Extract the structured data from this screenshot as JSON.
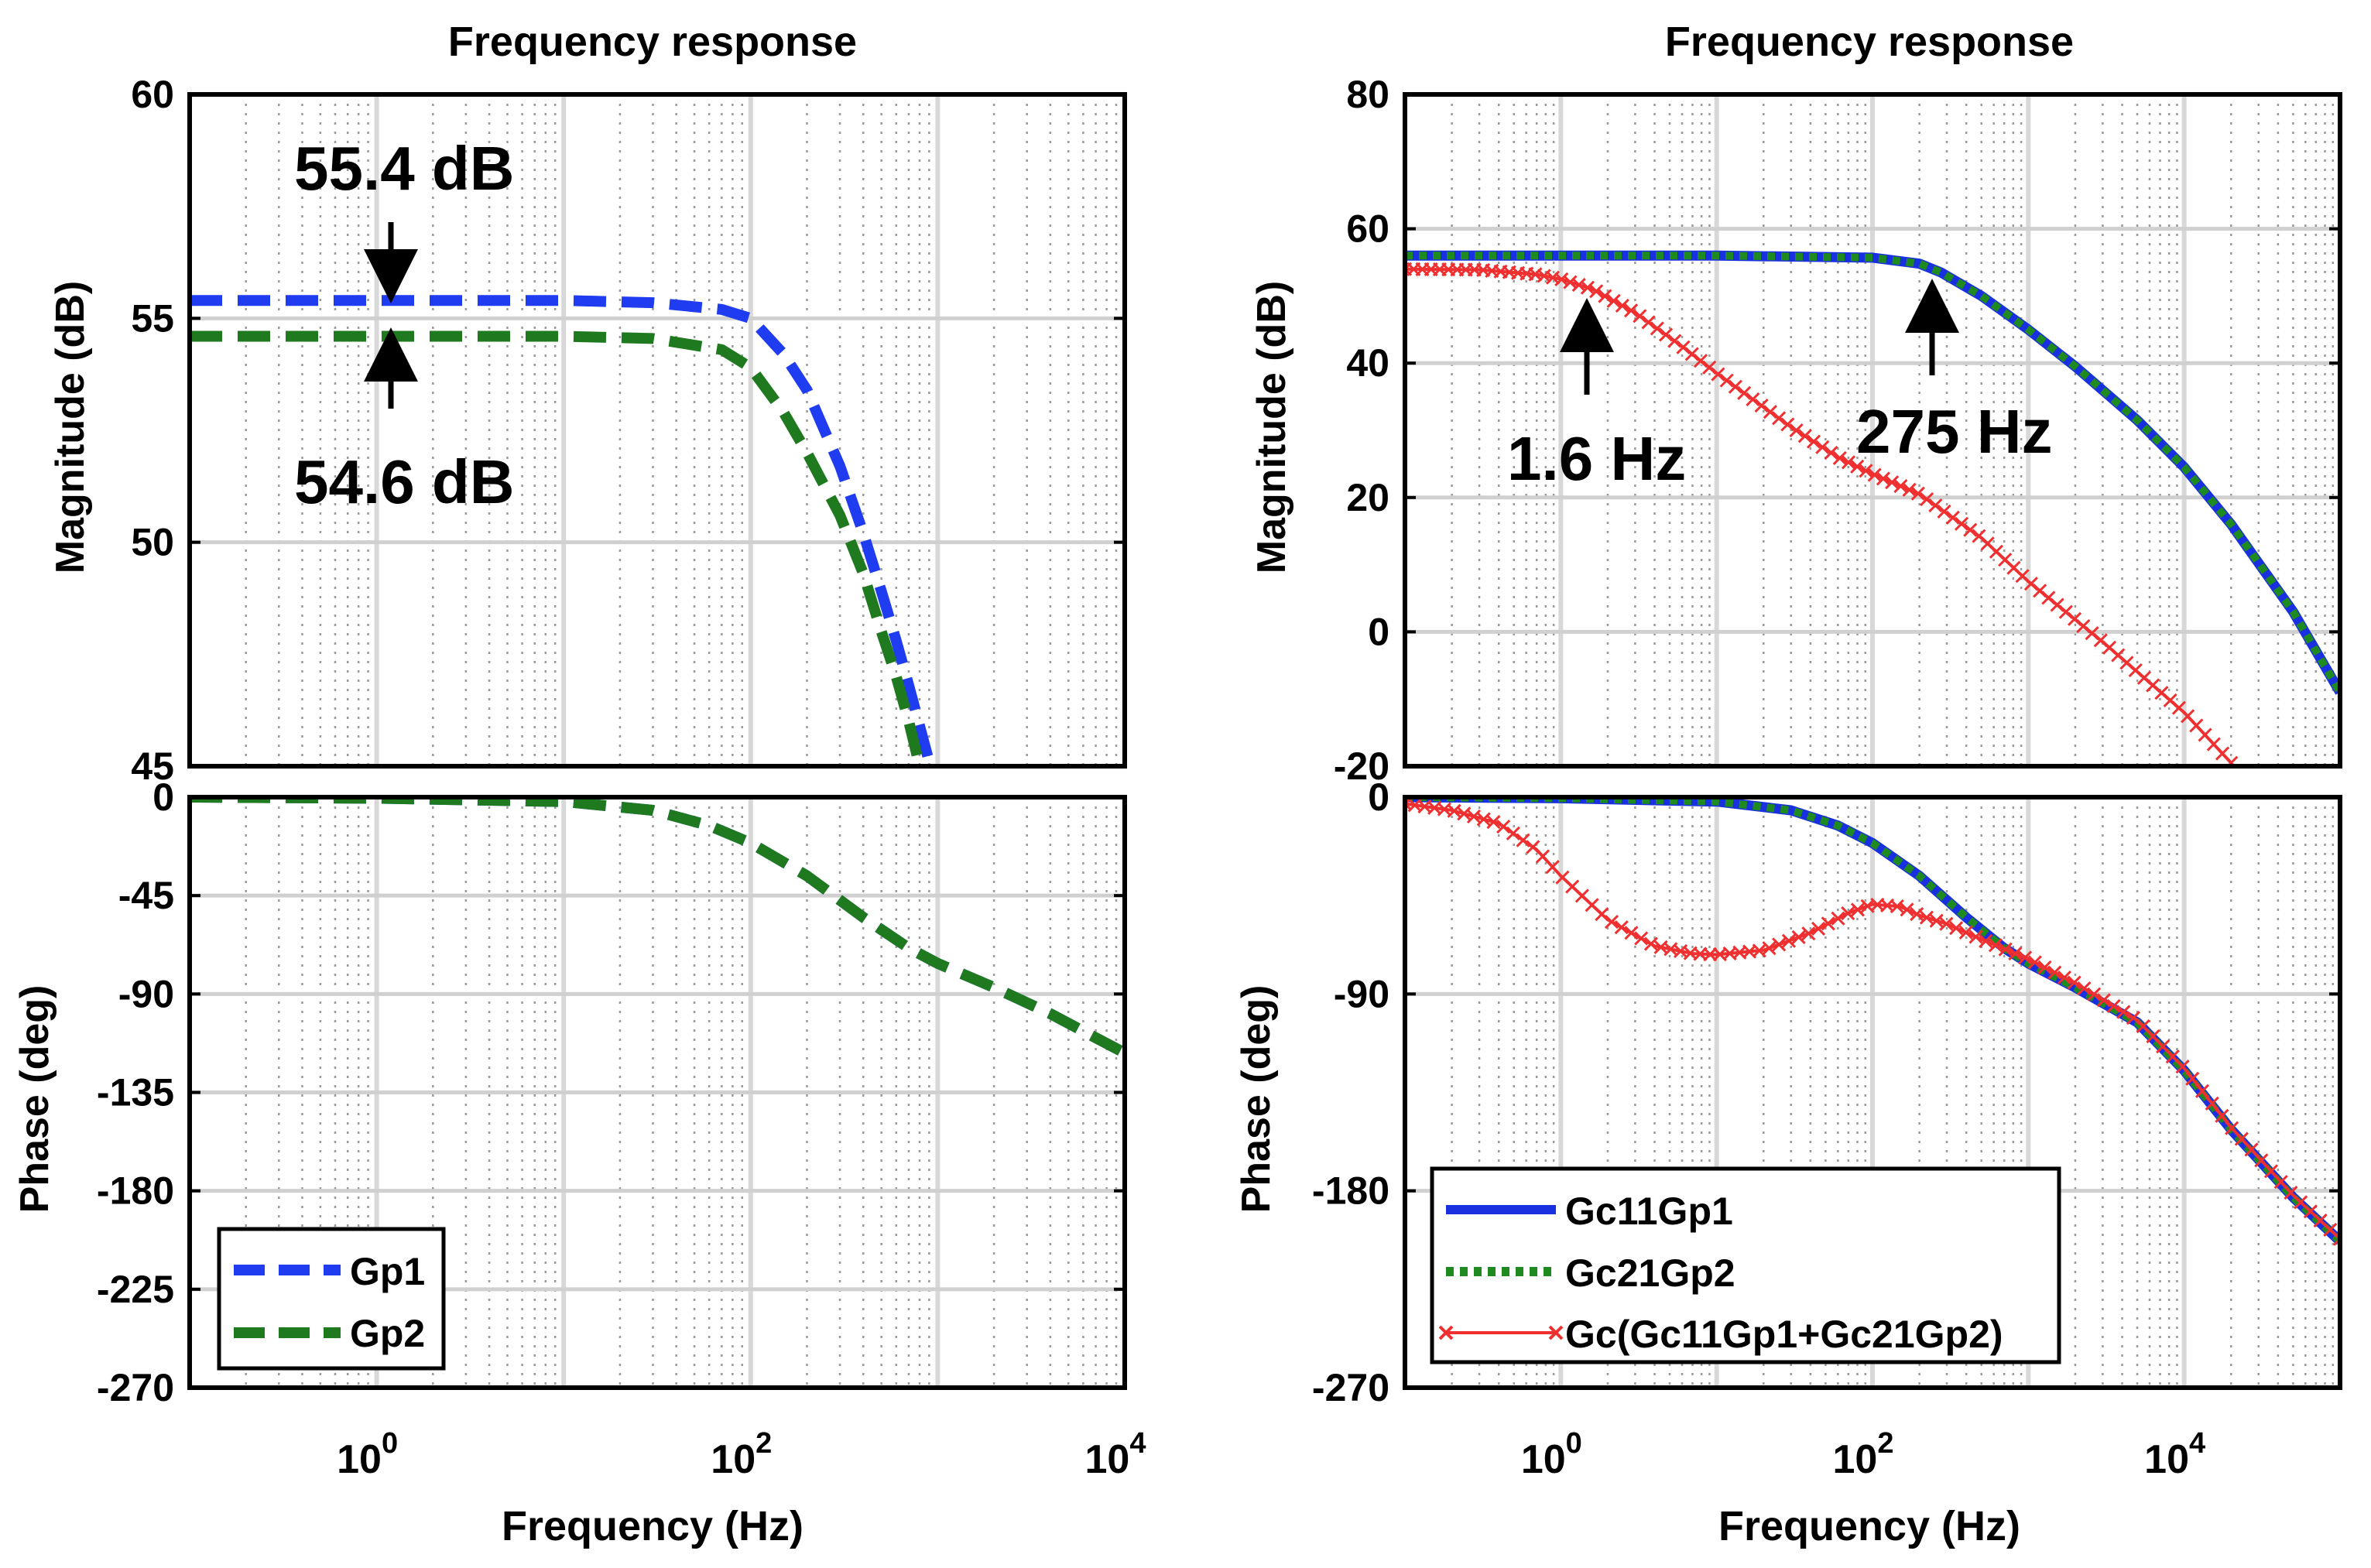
{
  "colors": {
    "gp1": "#1f3cf0",
    "gp2": "#1f7a1f",
    "gc11": "#1830e0",
    "gc21": "#1f8a1f",
    "gcsum": "#f03030",
    "grid": "#b0b0b0",
    "axis": "#000000"
  },
  "chart_data": [
    {
      "type": "line",
      "id": "left-magnitude",
      "title": "Frequency response",
      "xlabel": "",
      "ylabel": "Magnitude (dB)",
      "xscale": "log",
      "xlim": [
        0.1,
        10000
      ],
      "ylim": [
        45,
        60
      ],
      "yticks": [
        45,
        50,
        55,
        60
      ],
      "ytick_labels": [
        "45",
        "50",
        "55",
        "60"
      ],
      "grid": true,
      "series": [
        {
          "name": "Gp1",
          "style": "dashed",
          "x": [
            0.1,
            1,
            10,
            30,
            70,
            100,
            150,
            200,
            300,
            400,
            500,
            600,
            700,
            800,
            900
          ],
          "y": [
            55.4,
            55.4,
            55.4,
            55.35,
            55.2,
            55.0,
            54.2,
            53.4,
            51.7,
            50.2,
            48.9,
            47.8,
            46.8,
            45.9,
            45.1
          ]
        },
        {
          "name": "Gp2",
          "style": "dashed",
          "x": [
            0.1,
            1,
            10,
            30,
            70,
            100,
            150,
            200,
            300,
            400,
            500,
            600,
            700,
            800
          ],
          "y": [
            54.6,
            54.6,
            54.6,
            54.55,
            54.3,
            53.9,
            52.9,
            52.0,
            50.6,
            49.3,
            48.0,
            47.0,
            46.0,
            45.0
          ]
        }
      ],
      "annotations": [
        {
          "text": "55.4 dB",
          "x": 1,
          "y": 55.4
        },
        {
          "text": "54.6 dB",
          "x": 1,
          "y": 54.6
        }
      ]
    },
    {
      "type": "line",
      "id": "left-phase",
      "xlabel": "Frequency (Hz)",
      "ylabel": "Phase (deg)",
      "xscale": "log",
      "xlim": [
        0.1,
        10000
      ],
      "xticks": [
        1,
        100,
        10000
      ],
      "xtick_labels": [
        "0",
        "2",
        "4"
      ],
      "ylim": [
        -270,
        0
      ],
      "yticks": [
        0,
        -45,
        -90,
        -135,
        -180,
        -225,
        -270
      ],
      "ytick_labels": [
        "0",
        "-45",
        "-90",
        "-135",
        "-180",
        "-225",
        "-270"
      ],
      "grid": true,
      "legend": {
        "position": "bottom-left",
        "entries": [
          "Gp1",
          "Gp2"
        ]
      },
      "series": [
        {
          "name": "Gp1",
          "style": "dashed",
          "x": [
            0.1,
            1,
            10,
            30,
            60,
            100,
            200,
            400,
            700,
            1000,
            2000,
            4000,
            7000,
            10000
          ],
          "y": [
            0,
            -0.5,
            -2,
            -6,
            -13,
            -21,
            -36,
            -55,
            -69,
            -76,
            -87,
            -99,
            -110,
            -117
          ]
        },
        {
          "name": "Gp2",
          "style": "dashed",
          "x": [
            0.1,
            1,
            10,
            30,
            60,
            100,
            200,
            400,
            700,
            1000,
            2000,
            4000,
            7000,
            10000
          ],
          "y": [
            0,
            -0.5,
            -2,
            -6,
            -13,
            -21,
            -36,
            -55,
            -69,
            -76,
            -87,
            -99,
            -110,
            -117
          ]
        }
      ]
    },
    {
      "type": "line",
      "id": "right-magnitude",
      "title": "Frequency response",
      "xlabel": "",
      "ylabel": "Magnitude (dB)",
      "xscale": "log",
      "xlim": [
        0.1,
        100000
      ],
      "ylim": [
        -20,
        80
      ],
      "yticks": [
        -20,
        0,
        20,
        40,
        60,
        80
      ],
      "ytick_labels": [
        "-20",
        "0",
        "20",
        "40",
        "60",
        "80"
      ],
      "grid": true,
      "series": [
        {
          "name": "Gc11Gp1",
          "style": "solid",
          "x": [
            0.1,
            1,
            10,
            100,
            200,
            275,
            500,
            1000,
            2000,
            5000,
            10000,
            20000,
            50000,
            100000
          ],
          "y": [
            56,
            56,
            56,
            55.7,
            54.8,
            53.5,
            50,
            45,
            39.5,
            31.5,
            24.5,
            16,
            3,
            -9
          ]
        },
        {
          "name": "Gc21Gp2",
          "style": "dotted",
          "x": [
            0.1,
            1,
            10,
            100,
            200,
            275,
            500,
            1000,
            2000,
            5000,
            10000,
            20000,
            50000,
            100000
          ],
          "y": [
            56,
            56,
            56,
            55.7,
            54.8,
            53.5,
            50,
            45,
            39.5,
            31.5,
            24.5,
            16,
            3,
            -9
          ]
        },
        {
          "name": "Gc(Gc11Gp1+Gc21Gp2)",
          "style": "solid-x",
          "x": [
            0.1,
            0.3,
            0.7,
            1.0,
            1.6,
            3,
            6,
            10,
            30,
            60,
            100,
            200,
            500,
            1000,
            3000,
            10000,
            20000
          ],
          "y": [
            54,
            53.9,
            53.2,
            52.5,
            51,
            47.5,
            42.5,
            38.5,
            30.5,
            26,
            23.5,
            20.5,
            14,
            7.5,
            -1.5,
            -12,
            -19.5
          ]
        }
      ],
      "annotations": [
        {
          "text": "1.6 Hz",
          "x": 1.6,
          "y": 51
        },
        {
          "text": "275 Hz",
          "x": 275,
          "y": 53.5
        }
      ]
    },
    {
      "type": "line",
      "id": "right-phase",
      "xlabel": "Frequency (Hz)",
      "ylabel": "Phase (deg)",
      "xscale": "log",
      "xlim": [
        0.1,
        100000
      ],
      "xticks": [
        1,
        100,
        10000
      ],
      "xtick_labels": [
        "0",
        "2",
        "4"
      ],
      "ylim": [
        -270,
        0
      ],
      "yticks": [
        0,
        -90,
        -180,
        -270
      ],
      "ytick_labels": [
        "0",
        "-90",
        "-180",
        "-270"
      ],
      "grid": true,
      "legend": {
        "position": "bottom-left",
        "entries": [
          "Gc11Gp1",
          "Gc21Gp2",
          "Gc(Gc11Gp1+Gc21Gp2)"
        ]
      },
      "series": [
        {
          "name": "Gc11Gp1",
          "style": "solid",
          "x": [
            0.1,
            1,
            10,
            30,
            60,
            100,
            200,
            400,
            700,
            1000,
            2000,
            5000,
            10000,
            20000,
            50000,
            100000
          ],
          "y": [
            0,
            -0.5,
            -2,
            -6,
            -13,
            -21,
            -36,
            -55,
            -69,
            -76,
            -87,
            -103,
            -125,
            -152,
            -183,
            -203
          ]
        },
        {
          "name": "Gc21Gp2",
          "style": "dotted",
          "x": [
            0.1,
            1,
            10,
            30,
            60,
            100,
            200,
            400,
            700,
            1000,
            2000,
            5000,
            10000,
            20000,
            50000,
            100000
          ],
          "y": [
            0,
            -0.5,
            -2,
            -6,
            -13,
            -21,
            -36,
            -55,
            -69,
            -76,
            -87,
            -103,
            -125,
            -152,
            -183,
            -203
          ]
        },
        {
          "name": "Gc(Gc11Gp1+Gc21Gp2)",
          "style": "solid-x",
          "x": [
            0.1,
            0.2,
            0.4,
            0.7,
            1,
            2,
            4,
            7,
            10,
            20,
            40,
            70,
            100,
            150,
            200,
            300,
            500,
            1000,
            2000,
            5000,
            10000,
            20000,
            50000,
            100000
          ],
          "y": [
            -3,
            -6,
            -12,
            -24,
            -36,
            -56,
            -68,
            -71.5,
            -72,
            -70,
            -62,
            -53,
            -49,
            -50,
            -54,
            -58,
            -65,
            -74,
            -85,
            -102,
            -124,
            -151,
            -182,
            -202
          ]
        }
      ]
    }
  ]
}
